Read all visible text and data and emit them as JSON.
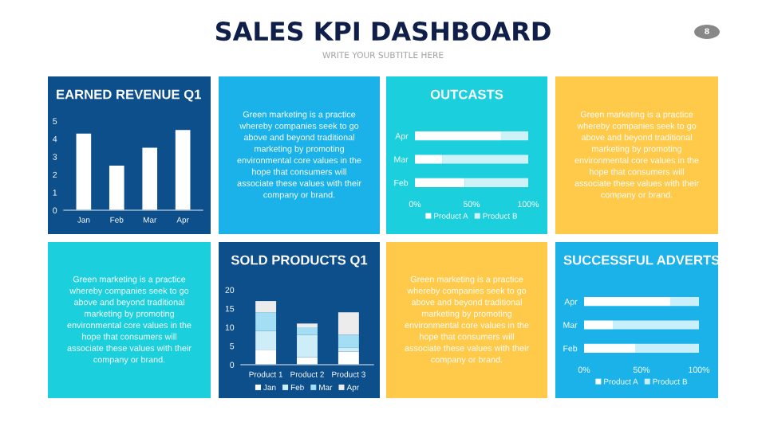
{
  "chart_data": [
    {
      "type": "other",
      "title": "SALES KPI DASHBOARD",
      "subtitle": "WRITE YOUR SUBTITLE HERE",
      "annotations": [
        "8"
      ]
    },
    {
      "type": "bar",
      "title": "EARNED REVENUE Q1",
      "categories": [
        "Jan",
        "Feb",
        "Mar",
        "Apr"
      ],
      "values": [
        4.3,
        2.5,
        3.5,
        4.5
      ],
      "color": "#ffffff",
      "ylim": [
        0,
        5
      ],
      "yticks": [
        0,
        1,
        2,
        3,
        4,
        5
      ],
      "grid": false
    },
    {
      "type": "other",
      "annotations": [
        "Green marketing is a practice\nwhereby companies seek to go\nabove and beyond traditional\nmarketing by promoting\nenvironmental core values in the\nhope that consumers will\nassociate these values with their\ncompany or brand."
      ]
    },
    {
      "type": "bar",
      "orientation": "horizontal",
      "stacked": true,
      "title": "OUTCASTS",
      "categories": [
        "Apr",
        "Mar",
        "Feb"
      ],
      "series": [
        {
          "name": "Product A",
          "color": "#ffffff",
          "values": [
            76,
            24,
            44
          ]
        },
        {
          "name": "Product B",
          "color": "#cdf3f8",
          "values": [
            24,
            76,
            56
          ]
        }
      ],
      "xlim": [
        0,
        100
      ],
      "xticks": [
        {
          "value": 0,
          "label": "0%"
        },
        {
          "value": 50,
          "label": "50%"
        },
        {
          "value": 100,
          "label": "100%"
        }
      ],
      "legend": "bottom",
      "grid": false
    },
    {
      "type": "other",
      "annotations": [
        "Green marketing is a practice\nwhereby companies seek to go\nabove and beyond traditional\nmarketing by promoting\nenvironmental core values in the\nhope that consumers will\nassociate these values with their\ncompany or brand."
      ]
    },
    {
      "type": "other",
      "annotations": [
        "Green marketing is a practice\nwhereby companies seek to go\nabove and beyond traditional\nmarketing by promoting\nenvironmental core values in the\nhope that consumers will\nassociate these values with their\ncompany or brand."
      ]
    },
    {
      "type": "bar",
      "stacked": true,
      "title": "SOLD PRODUCTS Q1",
      "categories": [
        "Product 1",
        "Product 2",
        "Product 3"
      ],
      "series": [
        {
          "name": "Jan",
          "color": "#ffffff",
          "values": [
            4,
            2,
            3.5
          ]
        },
        {
          "name": "Feb",
          "color": "#cdeef9",
          "values": [
            5,
            6,
            1
          ]
        },
        {
          "name": "Mar",
          "color": "#a3def4",
          "values": [
            5,
            2,
            3.5
          ]
        },
        {
          "name": "Apr",
          "color": "#ececec",
          "values": [
            3,
            1,
            6
          ]
        }
      ],
      "ylim": [
        0,
        20
      ],
      "yticks": [
        0,
        5,
        10,
        15,
        20
      ],
      "legend": "bottom",
      "grid": false
    },
    {
      "type": "other",
      "annotations": [
        "Green marketing is a practice\nwhereby companies seek to go\nabove and beyond traditional\nmarketing by promoting\nenvironmental core values in the\nhope that consumers will\nassociate these values with their\ncompany or brand."
      ]
    },
    {
      "type": "bar",
      "orientation": "horizontal",
      "stacked": true,
      "title": "SUCCESSFUL ADVERTS",
      "categories": [
        "Apr",
        "Mar",
        "Feb"
      ],
      "series": [
        {
          "name": "Product A",
          "color": "#ffffff",
          "values": [
            75,
            25,
            45
          ]
        },
        {
          "name": "Product B",
          "color": "#c9effc",
          "values": [
            25,
            75,
            55
          ]
        }
      ],
      "xlim": [
        0,
        100
      ],
      "xticks": [
        {
          "value": 0,
          "label": "0%"
        },
        {
          "value": 50,
          "label": "50%"
        },
        {
          "value": 100,
          "label": "100%"
        }
      ],
      "legend": "bottom",
      "grid": false
    }
  ]
}
